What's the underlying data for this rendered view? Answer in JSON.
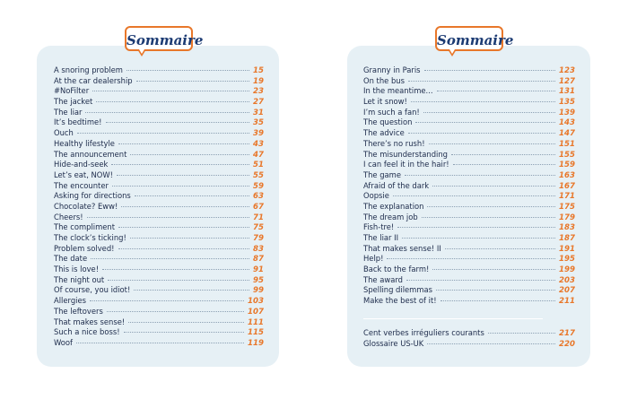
{
  "left": {
    "heading": "Sommaire",
    "entries": [
      {
        "title": "A snoring problem",
        "page": "15"
      },
      {
        "title": "At the car dealership",
        "page": "19"
      },
      {
        "title": "#NoFilter",
        "page": "23"
      },
      {
        "title": "The jacket",
        "page": "27"
      },
      {
        "title": "The liar",
        "page": "31"
      },
      {
        "title": "It’s bedtime!",
        "page": "35"
      },
      {
        "title": "Ouch",
        "page": "39"
      },
      {
        "title": "Healthy lifestyle",
        "page": "43"
      },
      {
        "title": "The announcement",
        "page": "47"
      },
      {
        "title": "Hide-and-seek",
        "page": "51"
      },
      {
        "title": "Let’s eat, NOW!",
        "page": "55"
      },
      {
        "title": "The encounter",
        "page": "59"
      },
      {
        "title": "Asking for directions",
        "page": "63"
      },
      {
        "title": "Chocolate? Eww!",
        "page": "67"
      },
      {
        "title": "Cheers!",
        "page": "71"
      },
      {
        "title": "The compliment",
        "page": "75"
      },
      {
        "title": "The clock’s ticking!",
        "page": "79"
      },
      {
        "title": "Problem solved!",
        "page": "83"
      },
      {
        "title": "The date",
        "page": "87"
      },
      {
        "title": "This is love!",
        "page": "91"
      },
      {
        "title": "The night out",
        "page": "95"
      },
      {
        "title": "Of course, you idiot!",
        "page": "99"
      },
      {
        "title": "Allergies",
        "page": "103"
      },
      {
        "title": "The leftovers",
        "page": "107"
      },
      {
        "title": "That makes sense!",
        "page": "111"
      },
      {
        "title": "Such a nice boss!",
        "page": "115"
      },
      {
        "title": "Woof",
        "page": "119"
      }
    ]
  },
  "right": {
    "heading": "Sommaire",
    "entries": [
      {
        "title": "Granny in Paris",
        "page": "123"
      },
      {
        "title": "On the bus",
        "page": "127"
      },
      {
        "title": "In the meantime...",
        "page": "131"
      },
      {
        "title": "Let it snow!",
        "page": "135"
      },
      {
        "title": "I’m such a fan!",
        "page": "139"
      },
      {
        "title": "The question",
        "page": "143"
      },
      {
        "title": "The advice",
        "page": "147"
      },
      {
        "title": "There’s no rush!",
        "page": "151"
      },
      {
        "title": "The misunderstanding",
        "page": "155"
      },
      {
        "title": "I can feel it in the hair!",
        "page": "159"
      },
      {
        "title": "The game",
        "page": "163"
      },
      {
        "title": "Afraid of the dark",
        "page": "167"
      },
      {
        "title": "Oopsie",
        "page": "171"
      },
      {
        "title": "The explanation",
        "page": "175"
      },
      {
        "title": "The dream job",
        "page": "179"
      },
      {
        "title": "Fish-tre!",
        "page": "183"
      },
      {
        "title": "The liar II",
        "page": "187"
      },
      {
        "title": "That makes sense! II",
        "page": "191"
      },
      {
        "title": "Help!",
        "page": "195"
      },
      {
        "title": "Back to the farm!",
        "page": "199"
      },
      {
        "title": "The award",
        "page": "203"
      },
      {
        "title": "Spelling dilemmas",
        "page": "207"
      },
      {
        "title": "Make the best of it!",
        "page": "211"
      }
    ],
    "extra": [
      {
        "title": "Cent verbes irréguliers courants",
        "page": "217"
      },
      {
        "title": "Glossaire US-UK",
        "page": "220"
      }
    ]
  }
}
